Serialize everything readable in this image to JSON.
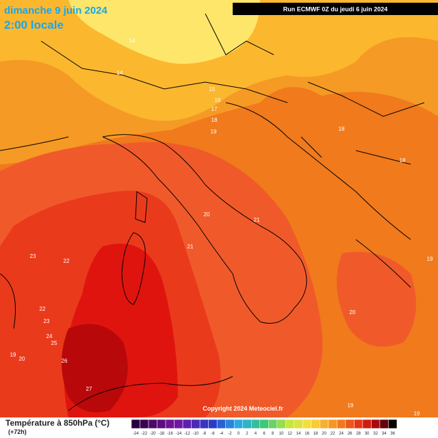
{
  "header": {
    "date": "dimanche 9 juin 2024",
    "time": "2:00 locale",
    "run": "Run ECMWF 0Z du jeudi 6 juin 2024"
  },
  "map": {
    "contour_labels": [
      14,
      14,
      15,
      16,
      17,
      18,
      19,
      18,
      18,
      20,
      21,
      21,
      23,
      22,
      22,
      23,
      24,
      25,
      26,
      27,
      19,
      20,
      19,
      20,
      19,
      19
    ],
    "copyright": "Copyright 2024 Meteociel.fr"
  },
  "footer": {
    "title": "Température à 850hPa (°C)",
    "lead": "(+72h)",
    "scale": [
      -24,
      -22,
      -20,
      -18,
      -16,
      -14,
      -12,
      -10,
      -8,
      -6,
      -4,
      -2,
      0,
      2,
      4,
      6,
      8,
      10,
      12,
      14,
      16,
      18,
      20,
      22,
      24,
      26,
      28,
      30,
      32,
      34,
      36
    ]
  }
}
